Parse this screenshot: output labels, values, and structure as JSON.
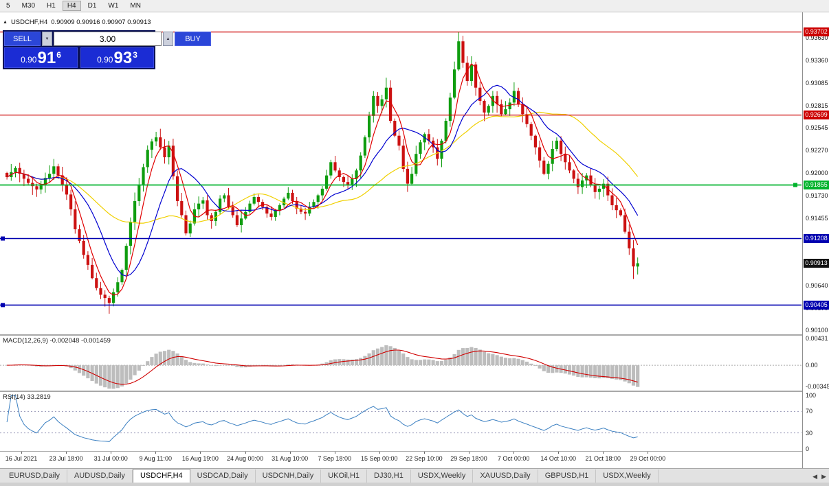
{
  "toolbar": {
    "timeframes": [
      "5",
      "M30",
      "H1",
      "H4",
      "D1",
      "W1",
      "MN"
    ],
    "active_timeframe": "H4"
  },
  "chart": {
    "header": {
      "symbol": "USDCHF,H4",
      "ohlc": "0.90909 0.90916 0.90907 0.90913"
    },
    "trade_panel": {
      "sell_label": "SELL",
      "buy_label": "BUY",
      "volume": "3.00",
      "sell_price": {
        "big_prefix": "0.90",
        "big": "91",
        "sup": "6"
      },
      "buy_price": {
        "big_prefix": "0.90",
        "big": "93",
        "sup": "3"
      }
    },
    "hlines": [
      {
        "price": 0.93702,
        "label": "0.93702",
        "color": "#cc0000",
        "width": 1.2,
        "handle": "none"
      },
      {
        "price": 0.92699,
        "label": "0.92699",
        "color": "#cc0000",
        "width": 1.2,
        "handle": "none"
      },
      {
        "price": 0.91855,
        "label": "0.91855",
        "color": "#00b32c",
        "width": 1.8,
        "handle": "right"
      },
      {
        "price": 0.91208,
        "label": "0.91208",
        "color": "#0000b0",
        "width": 1.6,
        "handle": "left"
      },
      {
        "price": 0.90405,
        "label": "0.90405",
        "color": "#0000b0",
        "width": 1.6,
        "handle": "left"
      }
    ],
    "current_price": {
      "price": 0.90913,
      "label": "0.90913",
      "color": "#111111"
    },
    "price_axis": [
      "0.93630",
      "0.93360",
      "0.93085",
      "0.92815",
      "0.92545",
      "0.92270",
      "0.92000",
      "0.91730",
      "0.91455",
      "0.91185",
      "0.90910",
      "0.90640",
      "0.90370",
      "0.90100"
    ]
  },
  "macd": {
    "label": "MACD(12,26,9) -0.002048 -0.001459",
    "axis": [
      "0.00431",
      "0.00",
      "-0.00345"
    ]
  },
  "rsi": {
    "label": "RSI(14) 33.2819",
    "axis": [
      "100",
      "70",
      "30",
      "0"
    ]
  },
  "time_axis": [
    "16 Jul 2021",
    "23 Jul 18:00",
    "31 Jul 00:00",
    "9 Aug 11:00",
    "16 Aug 19:00",
    "24 Aug 00:00",
    "31 Aug 10:00",
    "7 Sep 18:00",
    "15 Sep 00:00",
    "22 Sep 10:00",
    "29 Sep 18:00",
    "7 Oct 00:00",
    "14 Oct 10:00",
    "21 Oct 18:00",
    "29 Oct 00:00"
  ],
  "tabs": {
    "items": [
      "EURUSD,Daily",
      "AUDUSD,Daily",
      "USDCHF,H4",
      "USDCAD,Daily",
      "USDCNH,Daily",
      "UKOil,H1",
      "DJ30,H1",
      "USDX,Weekly",
      "XAUUSD,Daily",
      "GBPUSD,H1",
      "USDX,Weekly"
    ],
    "active": "USDCHF,H4"
  },
  "chart_data": {
    "type": "candlestick",
    "symbol": "USDCHF",
    "timeframe": "H4",
    "title": "USDCHF,H4",
    "price_range": [
      0.9006,
      0.9384
    ],
    "up_color": "#0f9d0f",
    "down_color": "#cc1111",
    "closes": [
      0.9195,
      0.9201,
      0.9206,
      0.9199,
      0.9193,
      0.9188,
      0.9184,
      0.918,
      0.9186,
      0.9194,
      0.9199,
      0.9208,
      0.9197,
      0.9186,
      0.9174,
      0.9156,
      0.9132,
      0.9118,
      0.9101,
      0.9089,
      0.9073,
      0.9061,
      0.9053,
      0.9049,
      0.9043,
      0.9056,
      0.9068,
      0.9083,
      0.9112,
      0.9141,
      0.9166,
      0.9186,
      0.9207,
      0.9228,
      0.9238,
      0.9243,
      0.9231,
      0.9219,
      0.9233,
      0.9196,
      0.9166,
      0.9149,
      0.9127,
      0.9139,
      0.9156,
      0.9163,
      0.9167,
      0.9149,
      0.9142,
      0.9153,
      0.9169,
      0.9173,
      0.9159,
      0.9149,
      0.9137,
      0.9145,
      0.9153,
      0.9163,
      0.9171,
      0.9165,
      0.9159,
      0.9151,
      0.9147,
      0.9155,
      0.9161,
      0.9169,
      0.9176,
      0.9166,
      0.9157,
      0.9153,
      0.9151,
      0.9159,
      0.9165,
      0.9173,
      0.9181,
      0.9197,
      0.9213,
      0.9203,
      0.9195,
      0.9189,
      0.9185,
      0.9193,
      0.9203,
      0.9221,
      0.9243,
      0.9269,
      0.9293,
      0.9281,
      0.9289,
      0.9303,
      0.9263,
      0.9245,
      0.9233,
      0.9205,
      0.9187,
      0.9199,
      0.9223,
      0.9237,
      0.9247,
      0.9239,
      0.9231,
      0.9217,
      0.9239,
      0.9263,
      0.9291,
      0.9325,
      0.9359,
      0.9333,
      0.9311,
      0.9331,
      0.9303,
      0.9287,
      0.9273,
      0.9281,
      0.9293,
      0.9283,
      0.9271,
      0.9277,
      0.9285,
      0.9299,
      0.9283,
      0.9271,
      0.9259,
      0.9245,
      0.9231,
      0.9215,
      0.9199,
      0.9211,
      0.9229,
      0.9239,
      0.9223,
      0.9213,
      0.9203,
      0.9193,
      0.9183,
      0.9191,
      0.9197,
      0.9185,
      0.9177,
      0.9181,
      0.9187,
      0.9173,
      0.9161,
      0.9155,
      0.9149,
      0.9129,
      0.9109,
      0.9087,
      0.9091
    ],
    "wick_overrides": {
      "24": {
        "low": 0.903
      },
      "89": {
        "high": 0.9315
      },
      "106": {
        "high": 0.93702
      },
      "147": {
        "low": 0.9072
      }
    },
    "overlays": {
      "ma_fast": {
        "period": 5,
        "color": "#e00000"
      },
      "ma_mid": {
        "period": 12,
        "color": "#0000d0"
      },
      "ma_slow": {
        "period": 30,
        "color": "#f0d000"
      }
    },
    "indicators": {
      "macd": {
        "params": "12,26,9",
        "main": -0.002048,
        "signal": -0.001459,
        "range": [
          -0.004,
          0.0048
        ],
        "hist_color": "#bdbdbd",
        "signal_color": "#d00000"
      },
      "rsi": {
        "params": "14",
        "value": 33.2819,
        "range": [
          0,
          100
        ],
        "levels": [
          30,
          70
        ],
        "color": "#3a7fc1"
      }
    }
  }
}
